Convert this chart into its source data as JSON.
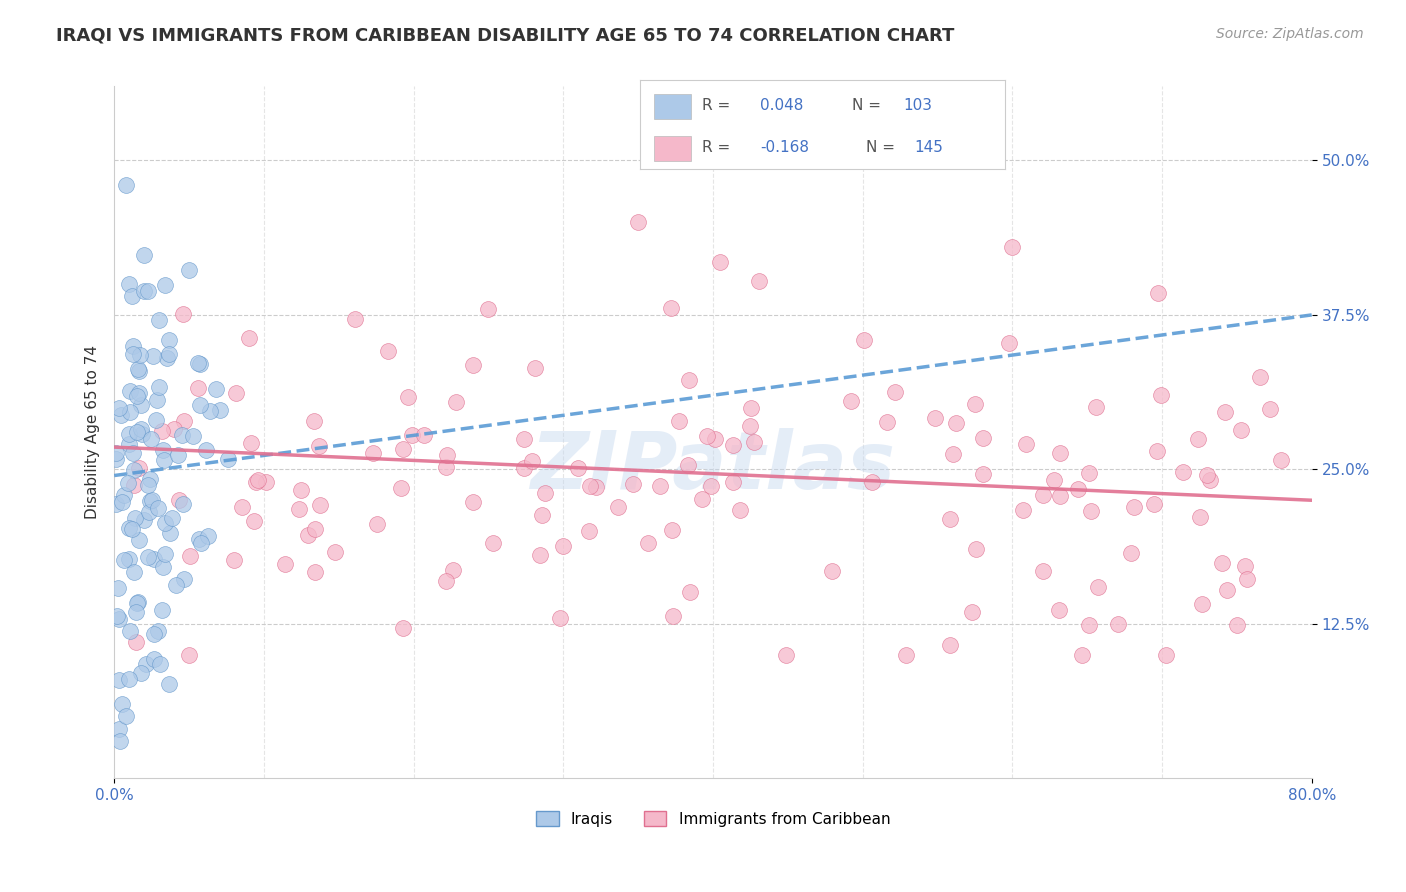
{
  "title": "IRAQI VS IMMIGRANTS FROM CARIBBEAN DISABILITY AGE 65 TO 74 CORRELATION CHART",
  "source": "Source: ZipAtlas.com",
  "ylabel": "Disability Age 65 to 74",
  "yticks": [
    "12.5%",
    "25.0%",
    "37.5%",
    "50.0%"
  ],
  "ytick_values": [
    0.125,
    0.25,
    0.375,
    0.5
  ],
  "ylim": [
    0.0,
    0.56
  ],
  "xlim": [
    0.0,
    0.8
  ],
  "iraqis_color": "#adc9e8",
  "iraqis_edge": "#6699cc",
  "caribbean_color": "#f5b8ca",
  "caribbean_edge": "#e07090",
  "iraqis_R": 0.048,
  "iraqis_N": 103,
  "caribbean_R": -0.168,
  "caribbean_N": 145,
  "trend_iraqis_color": "#5b9bd5",
  "trend_caribbean_color": "#e07090",
  "watermark": "ZIPatlas",
  "legend_label_iraqis": "Iraqis",
  "legend_label_caribbean": "Immigrants from Caribbean",
  "background_color": "#ffffff",
  "grid_color": "#cccccc",
  "title_fontsize": 13,
  "axis_label_fontsize": 11,
  "tick_fontsize": 11,
  "source_fontsize": 10,
  "iraqis_trend_start_y": 0.245,
  "iraqis_trend_end_y": 0.375,
  "caribbean_trend_start_y": 0.268,
  "caribbean_trend_end_y": 0.225
}
